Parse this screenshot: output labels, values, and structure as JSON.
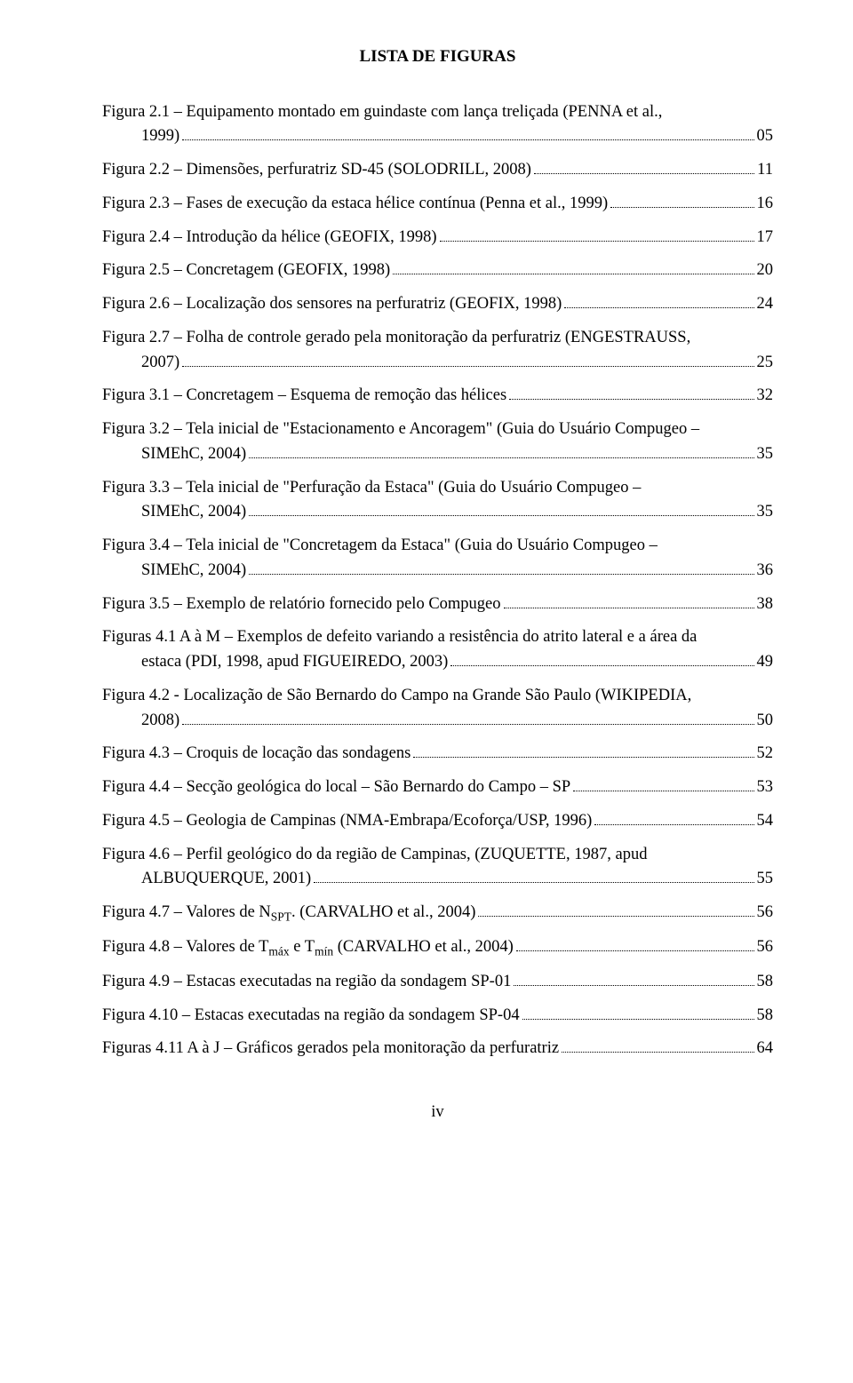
{
  "title": "LISTA DE FIGURAS",
  "pageNumber": "iv",
  "entries": [
    {
      "lines": [
        "Figura 2.1 – Equipamento montado em guindaste com lança treliçada (PENNA et al.,"
      ],
      "last": "1999)",
      "page": "05",
      "indent": true
    },
    {
      "lines": [],
      "last": "Figura 2.2 – Dimensões, perfuratriz SD-45 (SOLODRILL, 2008)",
      "page": "11",
      "indent": false
    },
    {
      "lines": [],
      "last": "Figura 2.3 – Fases de execução da estaca hélice contínua (Penna et al., 1999)",
      "page": "16",
      "indent": false
    },
    {
      "lines": [],
      "last": "Figura 2.4 – Introdução da hélice (GEOFIX, 1998)",
      "page": "17",
      "indent": false
    },
    {
      "lines": [],
      "last": "Figura 2.5 – Concretagem (GEOFIX, 1998)",
      "page": "20",
      "indent": false
    },
    {
      "lines": [],
      "last": "Figura 2.6 – Localização dos sensores na perfuratriz (GEOFIX, 1998)",
      "page": "24",
      "indent": false
    },
    {
      "lines": [
        "Figura 2.7 – Folha de controle gerado pela monitoração da perfuratriz (ENGESTRAUSS,"
      ],
      "last": "2007)",
      "page": "25",
      "indent": true
    },
    {
      "lines": [],
      "last": "Figura 3.1 – Concretagem – Esquema de remoção das hélices",
      "page": "32",
      "indent": false
    },
    {
      "lines": [
        "Figura 3.2 – Tela inicial de \"Estacionamento e Ancoragem\" (Guia do Usuário Compugeo –"
      ],
      "last": "SIMEhC, 2004)",
      "page": "35",
      "indent": true
    },
    {
      "lines": [
        "Figura 3.3 – Tela inicial de \"Perfuração da Estaca\" (Guia do Usuário Compugeo –"
      ],
      "last": "SIMEhC, 2004)",
      "page": "35",
      "indent": true
    },
    {
      "lines": [
        "Figura 3.4 – Tela inicial de \"Concretagem da Estaca\" (Guia do Usuário Compugeo –"
      ],
      "last": "SIMEhC, 2004)",
      "page": "36",
      "indent": true
    },
    {
      "lines": [],
      "last": "Figura 3.5 – Exemplo de relatório fornecido pelo Compugeo",
      "page": "38",
      "indent": false
    },
    {
      "lines": [
        "Figuras 4.1 A à M – Exemplos de defeito variando a resistência do atrito lateral e a área da"
      ],
      "last": "estaca (PDI, 1998, apud FIGUEIREDO, 2003)",
      "page": "49",
      "indent": true
    },
    {
      "lines": [
        "Figura 4.2 - Localização de São Bernardo do Campo na Grande São Paulo (WIKIPEDIA,"
      ],
      "last": "2008)",
      "page": "50",
      "indent": true
    },
    {
      "lines": [],
      "last": "Figura 4.3 – Croquis de locação das sondagens",
      "page": "52",
      "indent": false
    },
    {
      "lines": [],
      "last": "Figura 4.4 – Secção geológica do local – São Bernardo do Campo – SP",
      "page": "53",
      "indent": false
    },
    {
      "lines": [],
      "last": "Figura 4.5 – Geologia de Campinas (NMA-Embrapa/Ecoforça/USP, 1996)",
      "page": "54",
      "indent": false
    },
    {
      "lines": [
        "Figura 4.6 – Perfil geológico do da região de Campinas, (ZUQUETTE, 1987, apud"
      ],
      "last": "ALBUQUERQUE, 2001)",
      "page": "55",
      "indent": true
    },
    {
      "lines": [],
      "last": "Figura 4.7 – Valores de N<sub>SPT</sub>. (CARVALHO et al., 2004)",
      "page": "56",
      "indent": false,
      "html": true
    },
    {
      "lines": [],
      "last": "Figura 4.8 – Valores de T<sub>máx</sub> e T<sub>mín</sub> (CARVALHO et al., 2004)",
      "page": "56",
      "indent": false,
      "html": true
    },
    {
      "lines": [],
      "last": "Figura 4.9 – Estacas executadas na região da sondagem SP-01",
      "page": "58",
      "indent": false
    },
    {
      "lines": [],
      "last": "Figura 4.10 – Estacas executadas na região da sondagem SP-04",
      "page": "58",
      "indent": false
    },
    {
      "lines": [],
      "last": "Figuras 4.11 A à J – Gráficos gerados pela monitoração da perfuratriz",
      "page": "64",
      "indent": false
    }
  ]
}
